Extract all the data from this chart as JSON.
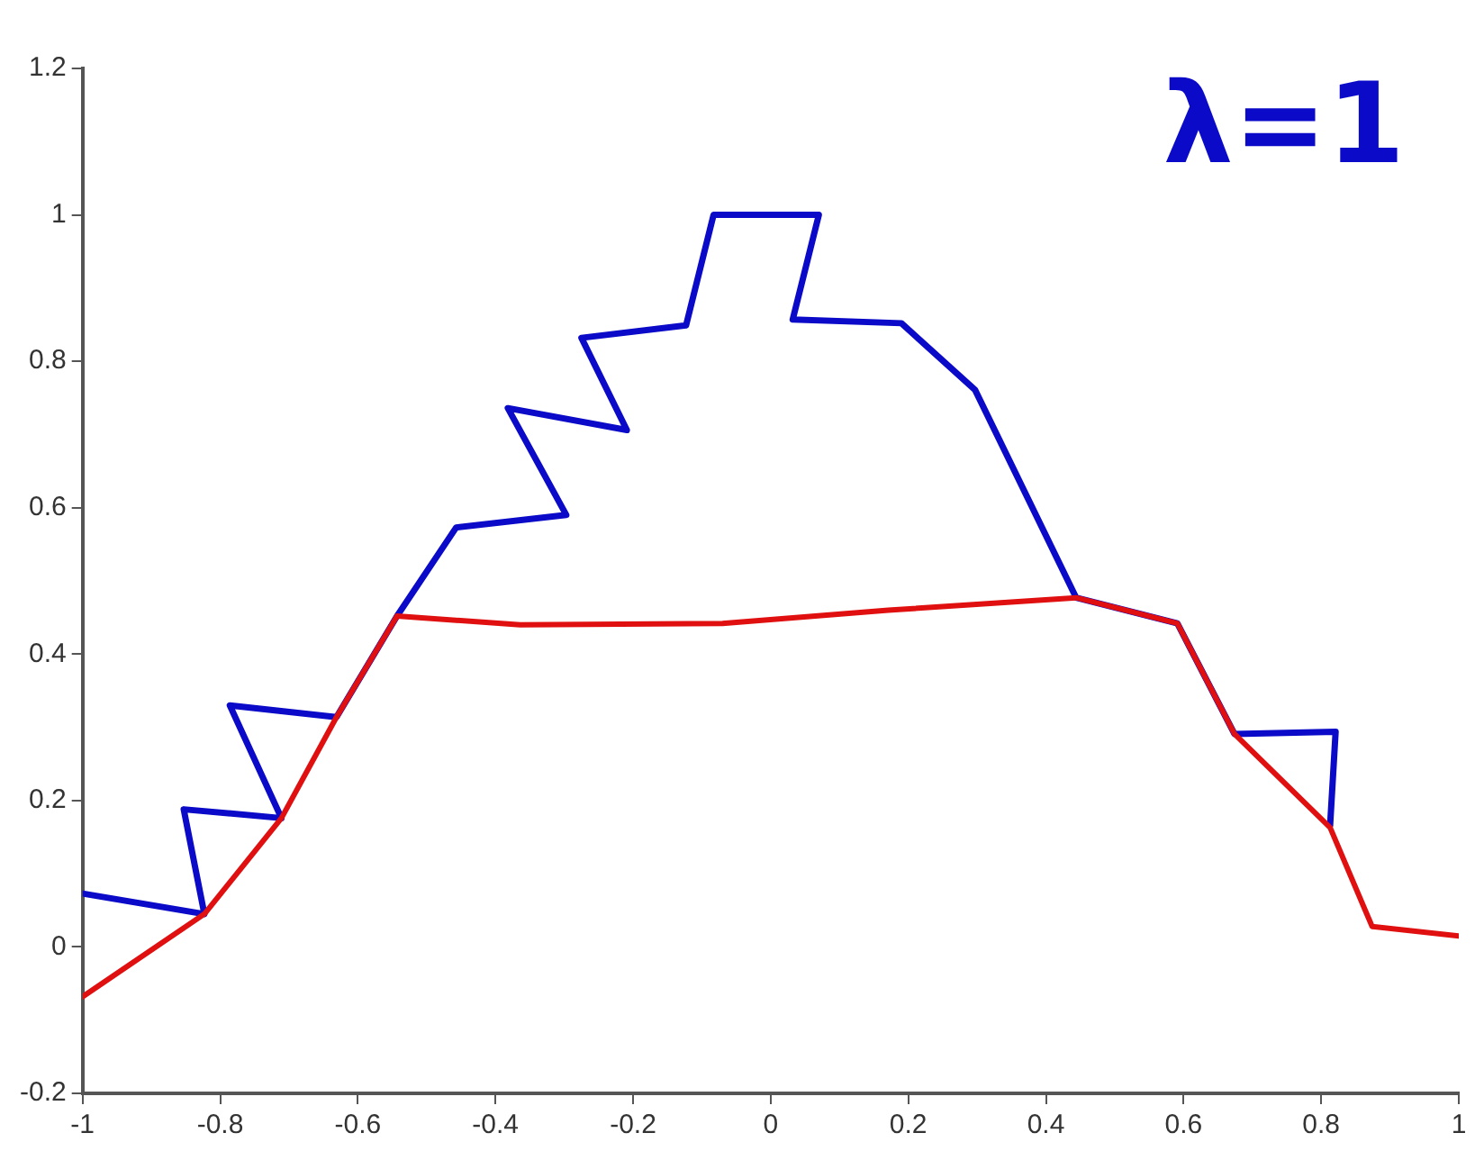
{
  "chart_data": {
    "type": "line",
    "annotations": [
      "λ=1"
    ],
    "series": [
      {
        "color": "#0a0ac8",
        "x": [
          -1,
          -0.823,
          -0.853,
          -0.711,
          -0.786,
          -0.631,
          -0.543,
          -0.457,
          -0.297,
          -0.382,
          -0.209,
          -0.275,
          -0.123,
          -0.083,
          0.07,
          0.032,
          0.19,
          0.297,
          0.444,
          0.591,
          0.674,
          0.821,
          0.813
        ],
        "values": [
          0.073,
          0.045,
          0.188,
          0.176,
          0.33,
          0.314,
          0.452,
          0.573,
          0.59,
          0.736,
          0.706,
          0.832,
          0.849,
          1.0,
          1.0,
          0.857,
          0.852,
          0.761,
          0.477,
          0.442,
          0.291,
          0.294,
          0.166
        ]
      },
      {
        "color": "#e01010",
        "x": [
          -1,
          -0.823,
          -0.711,
          -0.631,
          -0.543,
          -0.364,
          -0.07,
          0.171,
          0.444,
          0.591,
          0.674,
          0.813,
          0.874,
          1.0
        ],
        "values": [
          -0.068,
          0.045,
          0.176,
          0.314,
          0.452,
          0.44,
          0.442,
          0.46,
          0.477,
          0.442,
          0.291,
          0.163,
          0.028,
          0.015
        ]
      }
    ],
    "xlim": [
      -1,
      1
    ],
    "xticks": [
      -1,
      -0.8,
      -0.6,
      -0.4,
      -0.2,
      0,
      0.2,
      0.4,
      0.6,
      0.8,
      1
    ],
    "ylim": [
      -0.2,
      1.2
    ],
    "yticks": [
      -0.2,
      0,
      0.2,
      0.4,
      0.6,
      0.8,
      1,
      1.2
    ],
    "grid": false,
    "legend": false,
    "marker": "none",
    "line_style": "solid"
  }
}
